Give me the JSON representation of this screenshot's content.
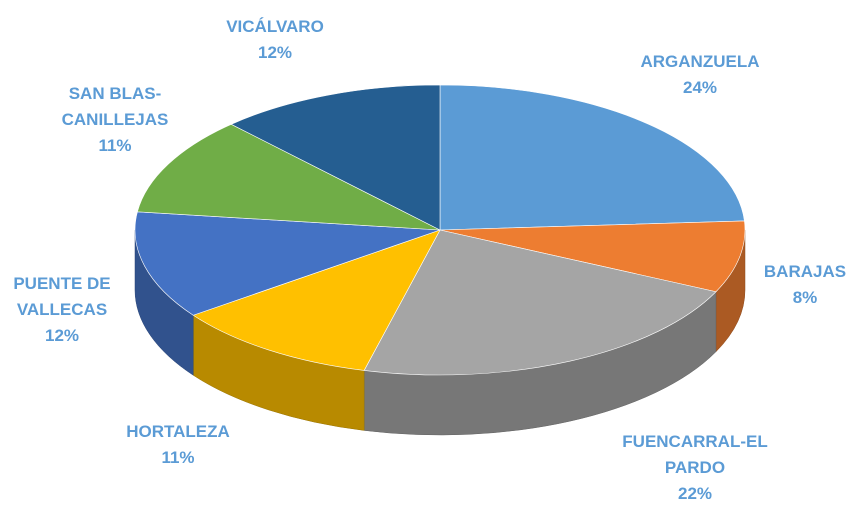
{
  "chart_data": {
    "type": "pie3d",
    "categories": [
      "ARGANZUELA",
      "BARAJAS",
      "FUENCARRAL-EL PARDO",
      "HORTALEZA",
      "PUENTE DE VALLECAS",
      "SAN BLAS-CANILLEJAS",
      "VICÁLVARO"
    ],
    "values": [
      24,
      8,
      22,
      11,
      12,
      11,
      12
    ],
    "value_labels": [
      "24%",
      "8%",
      "22%",
      "11%",
      "12%",
      "11%",
      "12%"
    ],
    "colors": [
      "#5b9bd5",
      "#ed7d31",
      "#a5a5a5",
      "#ffc000",
      "#4472c4",
      "#70ad47",
      "#255e91"
    ]
  }
}
